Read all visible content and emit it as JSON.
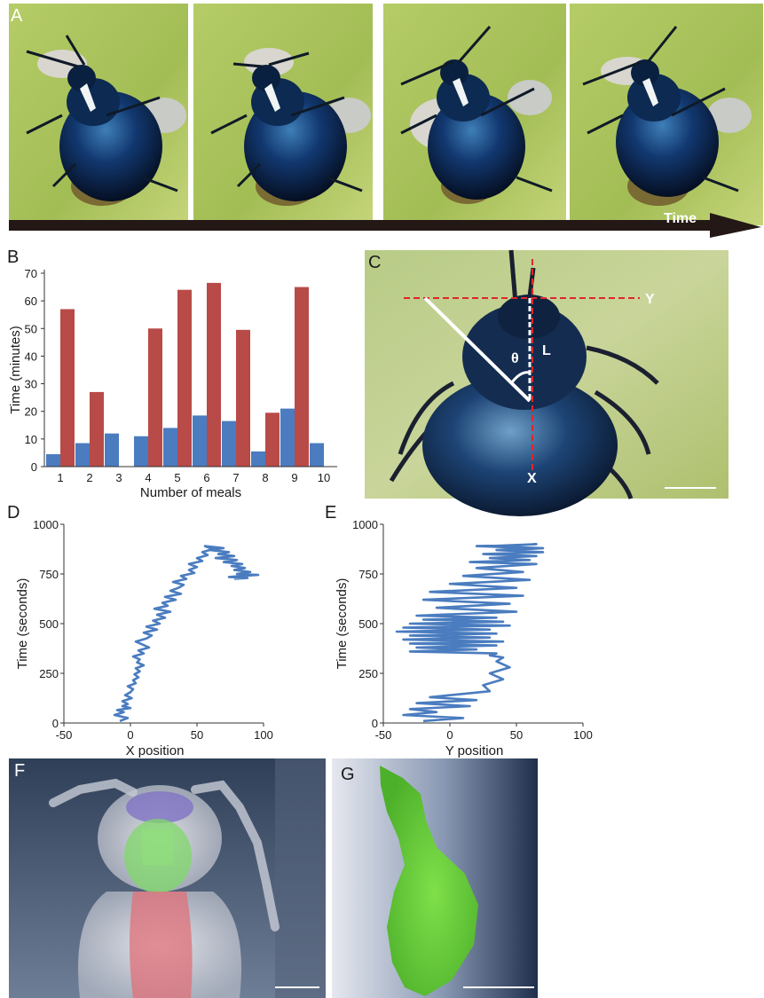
{
  "panels": {
    "a": {
      "label": "A",
      "time_label": "Time"
    },
    "b": {
      "label": "B"
    },
    "c": {
      "label": "C",
      "axis_y_label": "Y",
      "axis_x_label": "X",
      "length_label": "L",
      "angle_label": "θ"
    },
    "d": {
      "label": "D"
    },
    "e": {
      "label": "E"
    },
    "f": {
      "label": "F"
    },
    "g": {
      "label": "G"
    }
  },
  "colors": {
    "red_bar": "#b84a48",
    "blue_bar": "#4a7cbf",
    "trace": "#4a7cbf",
    "guide_red": "#e0262a",
    "arrow": "#231815"
  },
  "chart_data": [
    {
      "id": "b",
      "type": "bar",
      "categories": [
        "1",
        "2",
        "3",
        "4",
        "5",
        "6",
        "7",
        "8",
        "9",
        "10"
      ],
      "series": [
        {
          "values": [
            4.5,
            8.5,
            12,
            11,
            14,
            18.5,
            16.5,
            5.5,
            21,
            8.5
          ]
        },
        {
          "values": [
            57,
            27,
            null,
            50,
            64,
            66.5,
            49.5,
            19.5,
            65,
            null
          ]
        }
      ],
      "xlabel": "Number of meals",
      "ylabel": "Time (minutes)",
      "ylim": [
        0,
        70
      ],
      "yticks": [
        "0",
        "10",
        "20",
        "30",
        "40",
        "50",
        "60",
        "70"
      ]
    },
    {
      "id": "d",
      "type": "line",
      "xlabel": "X position",
      "ylabel": "Time (seconds)",
      "xlim": [
        -50,
        100
      ],
      "ylim": [
        0,
        1000
      ],
      "xticks": [
        "-50",
        "0",
        "50",
        "100"
      ],
      "yticks": [
        "0",
        "250",
        "500",
        "750",
        "1000"
      ],
      "x": [
        -8,
        -2,
        -12,
        -5,
        -10,
        0,
        -6,
        -2,
        -6,
        1,
        -4,
        0,
        2,
        -2,
        4,
        2,
        6,
        3,
        7,
        4,
        10,
        5,
        7,
        2,
        10,
        6,
        14,
        9,
        4,
        12,
        16,
        10,
        20,
        12,
        22,
        17,
        26,
        20,
        30,
        18,
        28,
        24,
        34,
        26,
        38,
        30,
        36,
        40,
        32,
        42,
        38,
        48,
        44,
        50,
        44,
        54,
        50,
        58,
        54,
        62,
        56,
        70,
        60,
        74,
        66,
        78,
        64,
        80,
        70,
        84,
        76,
        86,
        78,
        90,
        80,
        96,
        84,
        74,
        88,
        78
      ],
      "y": [
        10,
        25,
        40,
        55,
        65,
        75,
        85,
        95,
        110,
        125,
        140,
        155,
        170,
        185,
        200,
        215,
        230,
        245,
        260,
        275,
        290,
        305,
        320,
        335,
        350,
        365,
        380,
        395,
        410,
        425,
        440,
        455,
        470,
        485,
        500,
        515,
        530,
        545,
        560,
        575,
        590,
        605,
        620,
        635,
        650,
        665,
        680,
        695,
        710,
        725,
        740,
        755,
        770,
        785,
        800,
        815,
        830,
        845,
        860,
        875,
        890,
        880,
        870,
        860,
        850,
        840,
        830,
        820,
        810,
        800,
        790,
        780,
        770,
        760,
        750,
        745,
        740,
        735,
        730,
        725
      ]
    },
    {
      "id": "e",
      "type": "line",
      "xlabel": "Y position",
      "ylabel": "Time (seconds)",
      "xlim": [
        -50,
        100
      ],
      "ylim": [
        0,
        1000
      ],
      "xticks": [
        "-50",
        "0",
        "50",
        "100"
      ],
      "yticks": [
        "0",
        "250",
        "500",
        "750",
        "1000"
      ],
      "x": [
        -20,
        10,
        -35,
        -10,
        -30,
        15,
        -25,
        20,
        -15,
        30,
        25,
        40,
        30,
        45,
        35,
        40,
        30,
        35,
        -30,
        20,
        -25,
        35,
        -30,
        40,
        -35,
        30,
        -30,
        35,
        -40,
        30,
        -35,
        45,
        -30,
        40,
        -20,
        35,
        -25,
        50,
        -10,
        45,
        -20,
        55,
        -15,
        50,
        0,
        60,
        10,
        55,
        20,
        65,
        15,
        60,
        30,
        65,
        25,
        70,
        35,
        60,
        20,
        50,
        65,
        30,
        70,
        45,
        60
      ],
      "y": [
        10,
        25,
        40,
        55,
        70,
        85,
        100,
        115,
        130,
        160,
        190,
        220,
        250,
        280,
        310,
        330,
        340,
        350,
        360,
        370,
        380,
        390,
        400,
        410,
        420,
        430,
        440,
        450,
        460,
        470,
        480,
        490,
        500,
        510,
        520,
        530,
        540,
        560,
        580,
        600,
        620,
        640,
        660,
        680,
        700,
        720,
        740,
        760,
        780,
        800,
        810,
        820,
        830,
        840,
        850,
        860,
        870,
        880,
        890,
        895,
        900,
        890,
        880,
        870,
        860
      ]
    }
  ]
}
